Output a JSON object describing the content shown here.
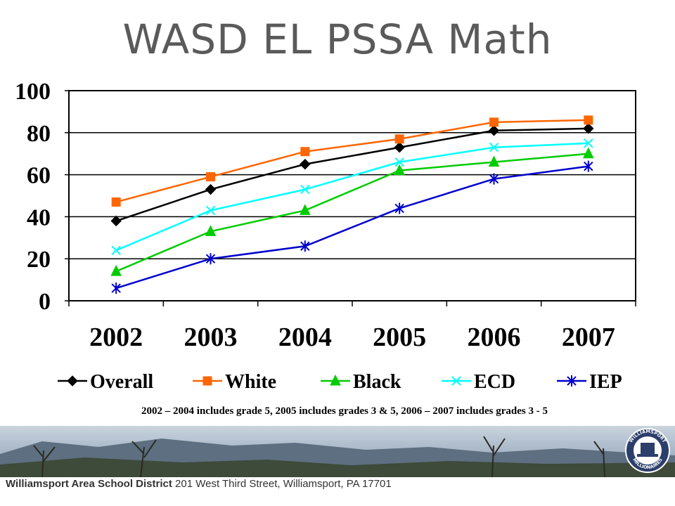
{
  "title": "WASD EL PSSA Math",
  "footnote": "2002 – 2004 includes grade 5, 2005 includes grades 3 & 5, 2006 – 2007 includes grades 3 - 5",
  "footer": {
    "district": "Williamsport Area School District",
    "address": "201 West Third Street, Williamsport, PA 17701"
  },
  "logo": {
    "top_text": "WILLIAMSPORT",
    "bottom_text": "MILLIONAIRES"
  },
  "chart_data": {
    "type": "line",
    "title": "",
    "xlabel": "",
    "ylabel": "",
    "categories": [
      "2002",
      "2003",
      "2004",
      "2005",
      "2006",
      "2007"
    ],
    "ylim": [
      0,
      100
    ],
    "yticks": [
      "0",
      "20",
      "40",
      "60",
      "80",
      "100"
    ],
    "grid": true,
    "legend": "bottom",
    "series": [
      {
        "name": "Overall",
        "marker": "diamond",
        "color": "#000000",
        "values": [
          38,
          53,
          65,
          73,
          81,
          82
        ]
      },
      {
        "name": "White",
        "marker": "square",
        "color": "#ff6600",
        "values": [
          47,
          59,
          71,
          77,
          85,
          86
        ]
      },
      {
        "name": "Black",
        "marker": "triangle",
        "color": "#00cc00",
        "values": [
          14,
          33,
          43,
          62,
          66,
          70
        ]
      },
      {
        "name": "ECD",
        "marker": "x",
        "color": "#00ffff",
        "values": [
          24,
          43,
          53,
          66,
          73,
          75
        ]
      },
      {
        "name": "IEP",
        "marker": "asterisk",
        "color": "#0000cc",
        "values": [
          6,
          20,
          26,
          44,
          58,
          64
        ]
      }
    ]
  }
}
